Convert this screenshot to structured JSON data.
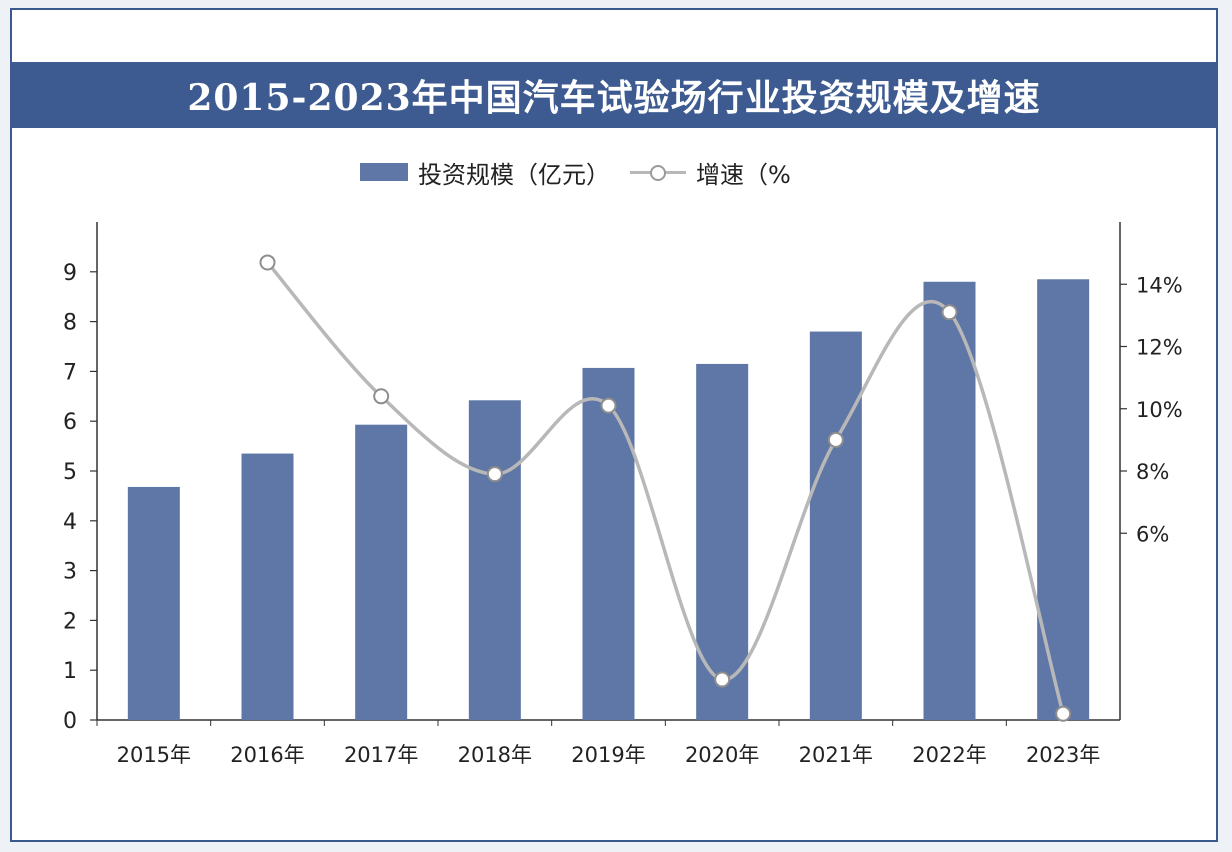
{
  "chart_data": {
    "type": "bar",
    "title": "2015-2023年中国汽车试验场行业投资规模及增速",
    "categories": [
      "2015年",
      "2016年",
      "2017年",
      "2018年",
      "2019年",
      "2020年",
      "2021年",
      "2022年",
      "2023年"
    ],
    "series": [
      {
        "name": "投资规模（亿元）",
        "type": "bar",
        "axis": "left",
        "color": "#5f77a6",
        "values": [
          4.68,
          5.35,
          5.93,
          6.42,
          7.07,
          7.15,
          7.8,
          8.8,
          8.85
        ]
      },
      {
        "name": "增速（%",
        "type": "line",
        "axis": "right",
        "color": "#b8b8b8",
        "values": [
          null,
          14.7,
          10.4,
          7.9,
          10.1,
          1.3,
          9.0,
          13.1,
          0.2
        ]
      }
    ],
    "y_left": {
      "ylim": [
        0,
        10
      ],
      "ticks": [
        "0",
        "1",
        "2",
        "3",
        "4",
        "5",
        "6",
        "7",
        "8",
        "9"
      ]
    },
    "y_right": {
      "ylim": [
        0,
        16
      ],
      "ticks": [
        "6%",
        "8%",
        "10%",
        "12%",
        "14%"
      ],
      "tick_values": [
        6,
        8,
        10,
        12,
        14
      ]
    },
    "legend_position": "top-center",
    "grid": false
  }
}
